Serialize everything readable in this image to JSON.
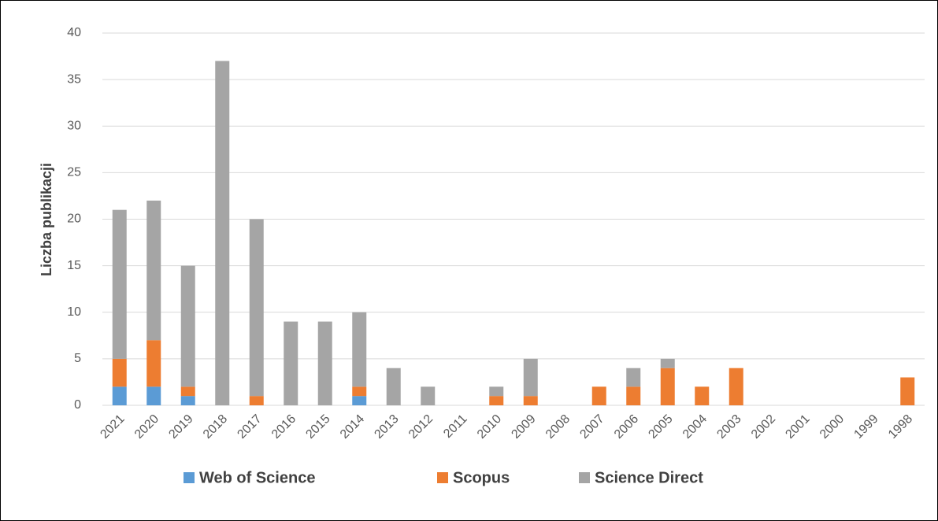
{
  "chart_data": {
    "type": "bar",
    "stacked": true,
    "y_label": "Liczba publikacji",
    "categories": [
      "2021",
      "2020",
      "2019",
      "2018",
      "2017",
      "2016",
      "2015",
      "2014",
      "2013",
      "2012",
      "2011",
      "2010",
      "2009",
      "2008",
      "2007",
      "2006",
      "2005",
      "2004",
      "2003",
      "2002",
      "2001",
      "2000",
      "1999",
      "1998"
    ],
    "series": [
      {
        "name": "Web of Science",
        "color": "#5b9bd5",
        "values": [
          2,
          2,
          1,
          0,
          0,
          0,
          0,
          1,
          0,
          0,
          0,
          0,
          0,
          0,
          0,
          0,
          0,
          0,
          0,
          0,
          0,
          0,
          0,
          0
        ]
      },
      {
        "name": "Scopus",
        "color": "#ed7d31",
        "values": [
          3,
          5,
          1,
          0,
          1,
          0,
          0,
          1,
          0,
          0,
          0,
          1,
          1,
          0,
          2,
          2,
          4,
          2,
          4,
          0,
          0,
          0,
          0,
          3
        ]
      },
      {
        "name": "Science Direct",
        "color": "#a5a5a5",
        "values": [
          16,
          15,
          13,
          37,
          19,
          9,
          9,
          8,
          4,
          2,
          0,
          1,
          4,
          0,
          0,
          2,
          1,
          0,
          0,
          0,
          0,
          0,
          0,
          0
        ]
      }
    ],
    "ylim": [
      0,
      40
    ],
    "yticks": [
      0,
      5,
      10,
      15,
      20,
      25,
      30,
      35,
      40
    ],
    "grid": true,
    "legend": "bottom"
  }
}
